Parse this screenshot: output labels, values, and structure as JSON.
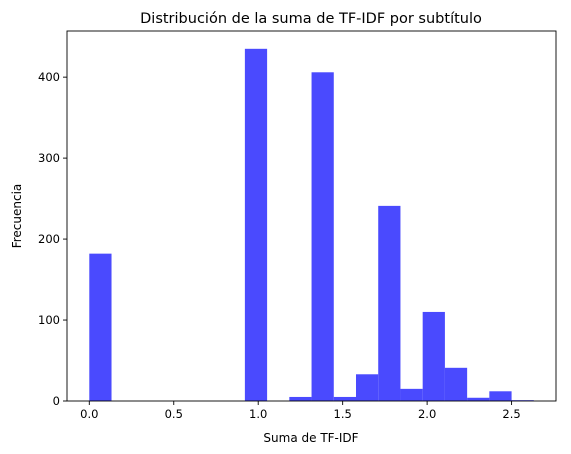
{
  "chart_data": {
    "type": "bar",
    "title": "Distribución de la suma de TF-IDF por subtítulo",
    "xlabel": "Suma de TF-IDF",
    "ylabel": "Frecuencia",
    "bin_width": 0.1316,
    "bins": [
      {
        "x0": 0.0,
        "value": 182
      },
      {
        "x0": 0.1316,
        "value": 0
      },
      {
        "x0": 0.2632,
        "value": 0
      },
      {
        "x0": 0.3947,
        "value": 0
      },
      {
        "x0": 0.5263,
        "value": 0
      },
      {
        "x0": 0.6579,
        "value": 0
      },
      {
        "x0": 0.7895,
        "value": 0
      },
      {
        "x0": 0.9211,
        "value": 435
      },
      {
        "x0": 1.0526,
        "value": 0
      },
      {
        "x0": 1.1842,
        "value": 5
      },
      {
        "x0": 1.3158,
        "value": 406
      },
      {
        "x0": 1.4474,
        "value": 5
      },
      {
        "x0": 1.5789,
        "value": 33
      },
      {
        "x0": 1.7105,
        "value": 241
      },
      {
        "x0": 1.8421,
        "value": 15
      },
      {
        "x0": 1.9737,
        "value": 110
      },
      {
        "x0": 2.1053,
        "value": 41
      },
      {
        "x0": 2.2368,
        "value": 4
      },
      {
        "x0": 2.3684,
        "value": 12
      },
      {
        "x0": 2.5,
        "value": 1
      }
    ],
    "xlim": [
      -0.132,
      2.763
    ],
    "ylim": [
      0,
      457
    ],
    "xticks": [
      0.0,
      0.5,
      1.0,
      1.5,
      2.0,
      2.5
    ],
    "xtick_labels": [
      "0.0",
      "0.5",
      "1.0",
      "1.5",
      "2.0",
      "2.5"
    ],
    "yticks": [
      0,
      100,
      200,
      300,
      400
    ],
    "ytick_labels": [
      "0",
      "100",
      "200",
      "300",
      "400"
    ],
    "bar_color": "#4a4afe",
    "grid": false,
    "legend": "none"
  }
}
